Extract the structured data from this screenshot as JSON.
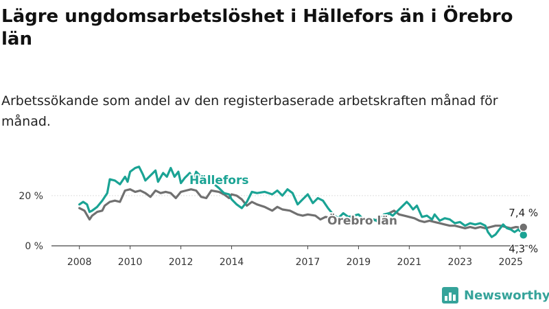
{
  "header": {
    "title": "Lägre ungdomsarbetslöshet i Hällefors än i Örebro län",
    "subtitle": "Arbetssökande som andel av den registerbaserade arbetskraften månad för månad."
  },
  "brand": {
    "name": "Newsworthy",
    "icon": "bar-chart-logo-icon",
    "color": "#35a39a"
  },
  "chart_data": {
    "type": "line",
    "title": "Lägre ungdomsarbetslöshet i Hällefors än i Örebro län",
    "subtitle": "Arbetssökande som andel av den registerbaserade arbetskraften månad för månad.",
    "xlabel": "",
    "ylabel": "",
    "x_ticks": [
      "2008",
      "2010",
      "2012",
      "2014",
      "2017",
      "2019",
      "2021",
      "2023",
      "2025"
    ],
    "y_ticks": [
      {
        "value": 0,
        "label": "0 %"
      },
      {
        "value": 20,
        "label": "20 %"
      }
    ],
    "xlim": [
      2006.9,
      2025.75
    ],
    "ylim": [
      0,
      35
    ],
    "grid": "horizontal",
    "legend": "direct labels",
    "series": [
      {
        "name": "Hällefors",
        "color": "#1aa394",
        "end_label": "4,3 %",
        "points": [
          [
            2008.0,
            16.5
          ],
          [
            2008.15,
            17.5
          ],
          [
            2008.3,
            16.5
          ],
          [
            2008.4,
            13.5
          ],
          [
            2008.5,
            14.0
          ],
          [
            2008.7,
            15.5
          ],
          [
            2008.9,
            18.0
          ],
          [
            2009.1,
            21.0
          ],
          [
            2009.2,
            26.5
          ],
          [
            2009.4,
            26.0
          ],
          [
            2009.6,
            24.5
          ],
          [
            2009.8,
            27.5
          ],
          [
            2009.9,
            25.5
          ],
          [
            2010.0,
            29.5
          ],
          [
            2010.2,
            31.0
          ],
          [
            2010.35,
            31.5
          ],
          [
            2010.5,
            28.5
          ],
          [
            2010.6,
            26.0
          ],
          [
            2010.8,
            28.0
          ],
          [
            2011.0,
            30.0
          ],
          [
            2011.1,
            25.5
          ],
          [
            2011.3,
            29.0
          ],
          [
            2011.45,
            27.5
          ],
          [
            2011.6,
            31.0
          ],
          [
            2011.75,
            27.5
          ],
          [
            2011.9,
            29.5
          ],
          [
            2012.0,
            25.0
          ],
          [
            2012.15,
            27.0
          ],
          [
            2012.35,
            29.0
          ],
          [
            2012.5,
            26.5
          ],
          [
            2012.6,
            29.5
          ],
          [
            2012.8,
            27.5
          ],
          [
            2013.0,
            24.5
          ],
          [
            2013.2,
            25.5
          ],
          [
            2013.5,
            23.0
          ],
          [
            2013.7,
            21.0
          ],
          [
            2013.9,
            20.5
          ],
          [
            2014.0,
            18.5
          ],
          [
            2014.2,
            16.5
          ],
          [
            2014.4,
            15.0
          ],
          [
            2014.6,
            17.5
          ],
          [
            2014.8,
            21.5
          ],
          [
            2015.0,
            21.0
          ],
          [
            2015.3,
            21.5
          ],
          [
            2015.6,
            20.5
          ],
          [
            2015.8,
            22.0
          ],
          [
            2016.0,
            20.0
          ],
          [
            2016.2,
            22.5
          ],
          [
            2016.4,
            21.0
          ],
          [
            2016.6,
            16.5
          ],
          [
            2016.8,
            18.5
          ],
          [
            2017.0,
            20.5
          ],
          [
            2017.2,
            17.0
          ],
          [
            2017.4,
            19.0
          ],
          [
            2017.6,
            18.0
          ],
          [
            2017.8,
            15.0
          ],
          [
            2018.0,
            12.5
          ],
          [
            2018.2,
            11.0
          ],
          [
            2018.4,
            13.0
          ],
          [
            2018.6,
            11.5
          ],
          [
            2018.8,
            12.0
          ],
          [
            2019.0,
            12.5
          ],
          [
            2019.2,
            10.5
          ],
          [
            2019.4,
            9.5
          ],
          [
            2019.6,
            10.5
          ],
          [
            2019.8,
            9.5
          ],
          [
            2020.0,
            12.5
          ],
          [
            2020.2,
            13.0
          ],
          [
            2020.35,
            12.0
          ],
          [
            2020.5,
            13.5
          ],
          [
            2020.7,
            15.5
          ],
          [
            2020.9,
            17.5
          ],
          [
            2021.0,
            16.5
          ],
          [
            2021.15,
            14.5
          ],
          [
            2021.3,
            16.0
          ],
          [
            2021.5,
            11.5
          ],
          [
            2021.7,
            12.0
          ],
          [
            2021.9,
            10.5
          ],
          [
            2022.0,
            12.5
          ],
          [
            2022.2,
            10.0
          ],
          [
            2022.4,
            11.0
          ],
          [
            2022.6,
            10.5
          ],
          [
            2022.8,
            9.0
          ],
          [
            2023.0,
            9.5
          ],
          [
            2023.2,
            8.0
          ],
          [
            2023.4,
            9.0
          ],
          [
            2023.6,
            8.5
          ],
          [
            2023.8,
            9.0
          ],
          [
            2024.0,
            8.0
          ],
          [
            2024.1,
            5.5
          ],
          [
            2024.25,
            3.5
          ],
          [
            2024.4,
            4.5
          ],
          [
            2024.55,
            6.5
          ],
          [
            2024.7,
            8.5
          ],
          [
            2024.85,
            7.0
          ],
          [
            2025.0,
            6.5
          ],
          [
            2025.15,
            5.5
          ],
          [
            2025.3,
            6.5
          ],
          [
            2025.45,
            5.0
          ],
          [
            2025.5,
            4.3
          ]
        ]
      },
      {
        "name": "Örebro län",
        "color": "#707070",
        "end_label": "7,4 %",
        "points": [
          [
            2008.0,
            15.0
          ],
          [
            2008.2,
            14.0
          ],
          [
            2008.4,
            10.5
          ],
          [
            2008.5,
            12.0
          ],
          [
            2008.7,
            13.5
          ],
          [
            2008.9,
            14.0
          ],
          [
            2009.0,
            16.0
          ],
          [
            2009.2,
            17.5
          ],
          [
            2009.4,
            18.0
          ],
          [
            2009.6,
            17.5
          ],
          [
            2009.8,
            22.0
          ],
          [
            2010.0,
            22.5
          ],
          [
            2010.2,
            21.5
          ],
          [
            2010.4,
            22.0
          ],
          [
            2010.6,
            21.0
          ],
          [
            2010.8,
            19.5
          ],
          [
            2011.0,
            22.0
          ],
          [
            2011.2,
            21.0
          ],
          [
            2011.4,
            21.5
          ],
          [
            2011.6,
            21.0
          ],
          [
            2011.8,
            19.0
          ],
          [
            2012.0,
            21.5
          ],
          [
            2012.2,
            22.0
          ],
          [
            2012.4,
            22.5
          ],
          [
            2012.6,
            22.0
          ],
          [
            2012.8,
            19.5
          ],
          [
            2013.0,
            19.0
          ],
          [
            2013.2,
            22.0
          ],
          [
            2013.5,
            21.5
          ],
          [
            2013.7,
            20.5
          ],
          [
            2013.9,
            19.0
          ],
          [
            2014.0,
            20.5
          ],
          [
            2014.2,
            20.0
          ],
          [
            2014.4,
            18.5
          ],
          [
            2014.6,
            16.0
          ],
          [
            2014.8,
            17.5
          ],
          [
            2015.0,
            16.5
          ],
          [
            2015.3,
            15.5
          ],
          [
            2015.6,
            14.0
          ],
          [
            2015.8,
            15.5
          ],
          [
            2016.0,
            14.5
          ],
          [
            2016.3,
            14.0
          ],
          [
            2016.6,
            12.5
          ],
          [
            2016.8,
            12.0
          ],
          [
            2017.0,
            12.5
          ],
          [
            2017.3,
            12.0
          ],
          [
            2017.5,
            10.5
          ],
          [
            2017.7,
            11.5
          ],
          [
            2018.0,
            11.0
          ],
          [
            2018.3,
            10.5
          ],
          [
            2018.6,
            10.5
          ],
          [
            2018.9,
            10.0
          ],
          [
            2019.2,
            10.5
          ],
          [
            2019.5,
            10.0
          ],
          [
            2019.8,
            10.5
          ],
          [
            2020.0,
            11.0
          ],
          [
            2020.2,
            13.0
          ],
          [
            2020.4,
            14.0
          ],
          [
            2020.6,
            12.5
          ],
          [
            2020.8,
            12.0
          ],
          [
            2021.0,
            11.5
          ],
          [
            2021.2,
            11.0
          ],
          [
            2021.4,
            10.0
          ],
          [
            2021.6,
            9.5
          ],
          [
            2021.8,
            10.0
          ],
          [
            2022.0,
            9.5
          ],
          [
            2022.2,
            9.0
          ],
          [
            2022.4,
            8.5
          ],
          [
            2022.6,
            8.0
          ],
          [
            2022.8,
            8.0
          ],
          [
            2023.0,
            7.5
          ],
          [
            2023.2,
            7.0
          ],
          [
            2023.4,
            7.5
          ],
          [
            2023.6,
            7.0
          ],
          [
            2023.8,
            7.5
          ],
          [
            2024.0,
            7.0
          ],
          [
            2024.2,
            7.5
          ],
          [
            2024.4,
            8.0
          ],
          [
            2024.6,
            8.0
          ],
          [
            2024.8,
            7.5
          ],
          [
            2025.0,
            7.0
          ],
          [
            2025.2,
            7.5
          ],
          [
            2025.4,
            7.3
          ],
          [
            2025.5,
            7.4
          ]
        ]
      }
    ]
  }
}
